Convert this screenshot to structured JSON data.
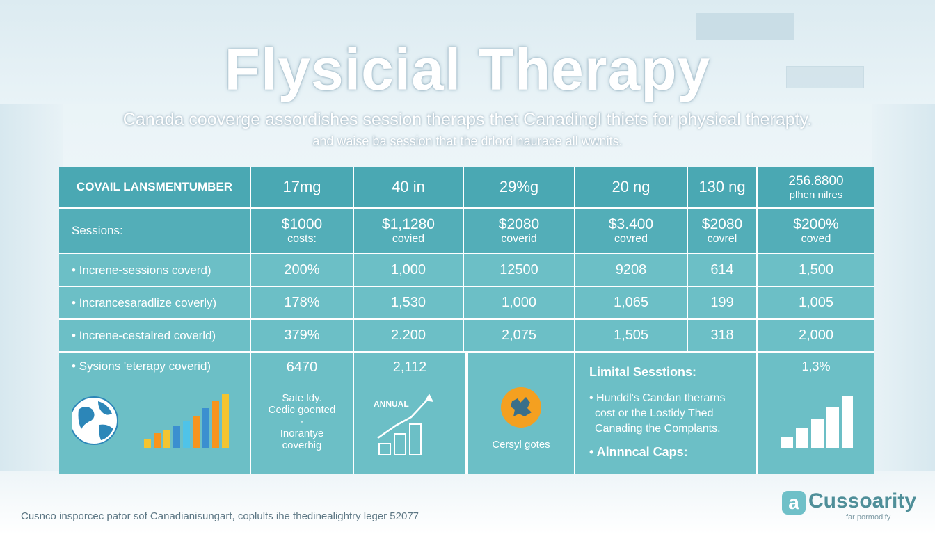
{
  "title": "Flysicial Therapy",
  "subtitle": {
    "line1": "Canada cooverge assordishes session theraps thet Canadingl thiets for physical therapty.",
    "line2": "and waise ba session that the drlord naurace all wwnits."
  },
  "table": {
    "header": {
      "label": "COVAIL LANSMENTUMBER",
      "values": [
        "17mg",
        "40 in",
        "29%g",
        "20 ng",
        "130 ng"
      ],
      "last": {
        "top": "256.8800",
        "bottom": "plhen nilres"
      }
    },
    "sessions_row": {
      "label": "Sessions:",
      "cells": [
        {
          "amount": "$1000",
          "note": "costs:"
        },
        {
          "amount": "$1,1280",
          "note": "covied"
        },
        {
          "amount": "$2080",
          "note": "coverid"
        },
        {
          "amount": "$3.400",
          "note": "covred"
        },
        {
          "amount": "$2080",
          "note": "covrel"
        },
        {
          "amount": "$200%",
          "note": "coved"
        }
      ]
    },
    "rows": [
      {
        "label": "•  Increne-sessions coverd)",
        "values": [
          "200%",
          "1,000",
          "12500",
          "9208",
          "614",
          "1,500"
        ]
      },
      {
        "label": "•  Incrancesaradlize coverly)",
        "values": [
          "178%",
          "1,530",
          "1,000",
          "1,065",
          "199",
          "1,005"
        ]
      },
      {
        "label": "•  Increne-cestalred coverld)",
        "values": [
          "379%",
          "2.200",
          "2,075",
          "1,505",
          "318",
          "2,000"
        ]
      }
    ],
    "bottom": {
      "label": "•  Sysions 'eterapy coverid)",
      "c1": {
        "value": "6470",
        "line1": "Sate ldy.",
        "line2": "Cedic goented",
        "dash": "-",
        "line3": "Inorantye",
        "line4": "coverbig"
      },
      "c2": {
        "value": "2,112",
        "chart_label": "ANNUAL"
      },
      "c3": {
        "caption": "Cersyl gotes"
      },
      "c4": {
        "heading": "Limital Sesstions:",
        "bullet1": "• Hunddl's Candan therarns",
        "bullet1b": "cost or the Lostidy Thed",
        "bullet1c": "Canading the Complants.",
        "bullet2": "• Alnnncal Caps:"
      },
      "c5": {
        "value": "1,3%"
      }
    }
  },
  "footer": "Cusnco insporcec pator sof Canadianisungart, coplults ihe thedinealightry leger 52077",
  "logo": {
    "mark": "a",
    "name": "Cussoarity",
    "tagline": "far pormodify"
  },
  "colors": {
    "table_cell": "#5eb6bf",
    "table_header": "#4aa8b3",
    "bar_yellow": "#f4c430",
    "bar_orange": "#f7941d",
    "bar_blue": "#3b8fd0",
    "logo": "#4f8f99"
  },
  "icons": [
    "globe-icon",
    "bar-chart-icon",
    "annual-growth-chart-icon",
    "map-badge-icon",
    "white-bar-chart-icon"
  ]
}
